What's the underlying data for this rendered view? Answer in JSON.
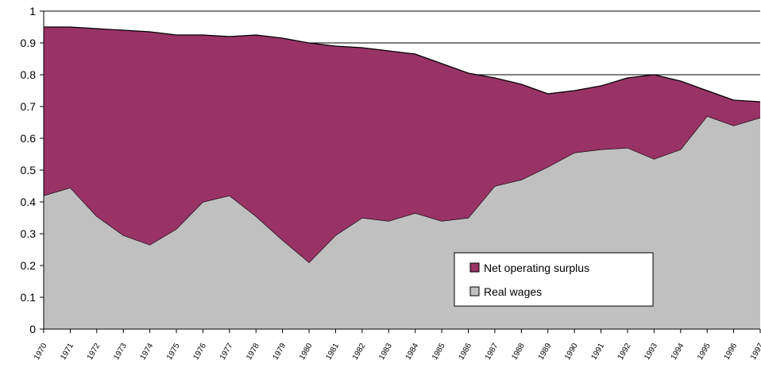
{
  "chart_data": {
    "type": "stacked_area",
    "categories": [
      "1970",
      "1971",
      "1972",
      "1973",
      "1974",
      "1975",
      "1976",
      "1977",
      "1978",
      "1979",
      "1980",
      "1981",
      "1982",
      "1983",
      "1984",
      "1985",
      "1986",
      "1987",
      "1988",
      "1989",
      "1990",
      "1991",
      "1992",
      "1993",
      "1994",
      "1995",
      "1996",
      "1997"
    ],
    "series": [
      {
        "name": "Real wages",
        "color": "#c0c0c0",
        "values": [
          0.42,
          0.445,
          0.355,
          0.295,
          0.265,
          0.315,
          0.4,
          0.42,
          0.355,
          0.28,
          0.21,
          0.295,
          0.35,
          0.34,
          0.365,
          0.34,
          0.35,
          0.45,
          0.47,
          0.51,
          0.555,
          0.565,
          0.57,
          0.535,
          0.565,
          0.67,
          0.64,
          0.665
        ]
      },
      {
        "name": "Net operating surplus",
        "color": "#993366",
        "values": [
          0.53,
          0.505,
          0.59,
          0.645,
          0.67,
          0.61,
          0.525,
          0.5,
          0.57,
          0.635,
          0.69,
          0.595,
          0.535,
          0.535,
          0.5,
          0.495,
          0.455,
          0.34,
          0.3,
          0.23,
          0.195,
          0.2,
          0.22,
          0.265,
          0.215,
          0.08,
          0.08,
          0.05
        ]
      }
    ],
    "ylim": [
      0,
      1
    ],
    "yticks": [
      0,
      0.1,
      0.2,
      0.3,
      0.4,
      0.5,
      0.6,
      0.7,
      0.8,
      0.9,
      1
    ],
    "grid": true
  }
}
